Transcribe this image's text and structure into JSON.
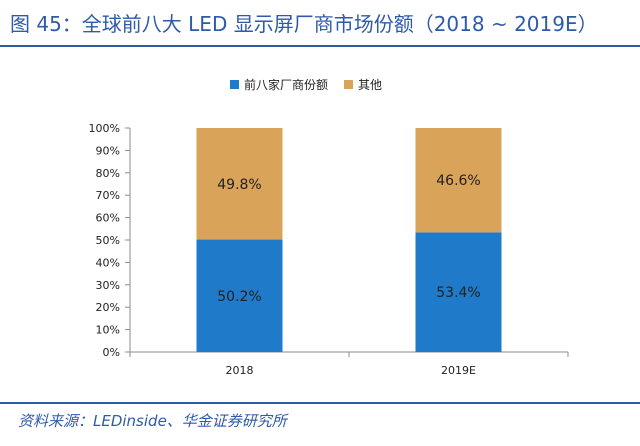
{
  "figure": {
    "title": "图 45：全球前八大 LED 显示屏厂商市场份额（2018 ~ 2019E）",
    "source": "资料来源：LEDinside、华金证券研究所"
  },
  "chart_data": {
    "type": "bar",
    "stacked": true,
    "title": "",
    "categories": [
      "2018",
      "2019E"
    ],
    "series": [
      {
        "name": "前八家厂商份额",
        "values": [
          50.2,
          53.4
        ],
        "labels": [
          "50.2%",
          "53.4%"
        ],
        "color": "#1f7ac9"
      },
      {
        "name": "其他",
        "values": [
          49.8,
          46.6
        ],
        "labels": [
          "49.8%",
          "46.6%"
        ],
        "color": "#d9a35a"
      }
    ],
    "ylim": [
      0,
      100
    ],
    "yticks": [
      "0%",
      "10%",
      "20%",
      "30%",
      "40%",
      "50%",
      "60%",
      "70%",
      "80%",
      "90%",
      "100%"
    ],
    "legend_position": "top-center",
    "grid": false
  }
}
